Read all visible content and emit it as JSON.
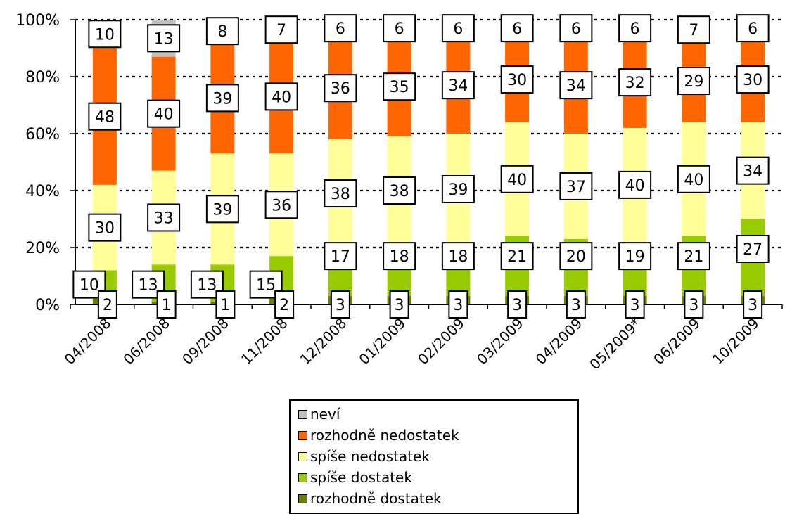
{
  "chart_data": {
    "type": "bar",
    "stacked": true,
    "normalized": true,
    "categories": [
      "04/2008",
      "06/2008",
      "09/2008",
      "11/2008",
      "12/2008",
      "01/2009",
      "02/2009",
      "03/2009",
      "04/2009",
      "05/2009*",
      "06/2009",
      "10/2009"
    ],
    "series": [
      {
        "name": "rozhodně dostatek",
        "color": "#6b7f00",
        "values": [
          2,
          1,
          1,
          2,
          3,
          3,
          3,
          3,
          3,
          3,
          3,
          3
        ]
      },
      {
        "name": "spíše dostatek",
        "color": "#99cc00",
        "values": [
          10,
          13,
          13,
          15,
          17,
          18,
          18,
          21,
          20,
          19,
          21,
          27
        ]
      },
      {
        "name": "spíše nedostatek",
        "color": "#ffff99",
        "values": [
          30,
          33,
          39,
          36,
          38,
          38,
          39,
          40,
          37,
          40,
          40,
          34
        ]
      },
      {
        "name": "rozhodně nedostatek",
        "color": "#ff6600",
        "values": [
          48,
          40,
          39,
          40,
          36,
          35,
          34,
          30,
          34,
          32,
          29,
          30
        ]
      },
      {
        "name": "neví",
        "color": "#c0c0c0",
        "values": [
          10,
          13,
          8,
          7,
          6,
          6,
          6,
          6,
          6,
          6,
          7,
          6
        ]
      }
    ],
    "yticks": [
      "0%",
      "20%",
      "40%",
      "60%",
      "80%",
      "100%"
    ],
    "ylim": [
      0,
      100
    ],
    "grid": "horizontal dotted",
    "legend_position": "bottom",
    "legend_order": [
      "neví",
      "rozhodně nedostatek",
      "spíše nedostatek",
      "spíše dostatek",
      "rozhodně dostatek"
    ]
  }
}
